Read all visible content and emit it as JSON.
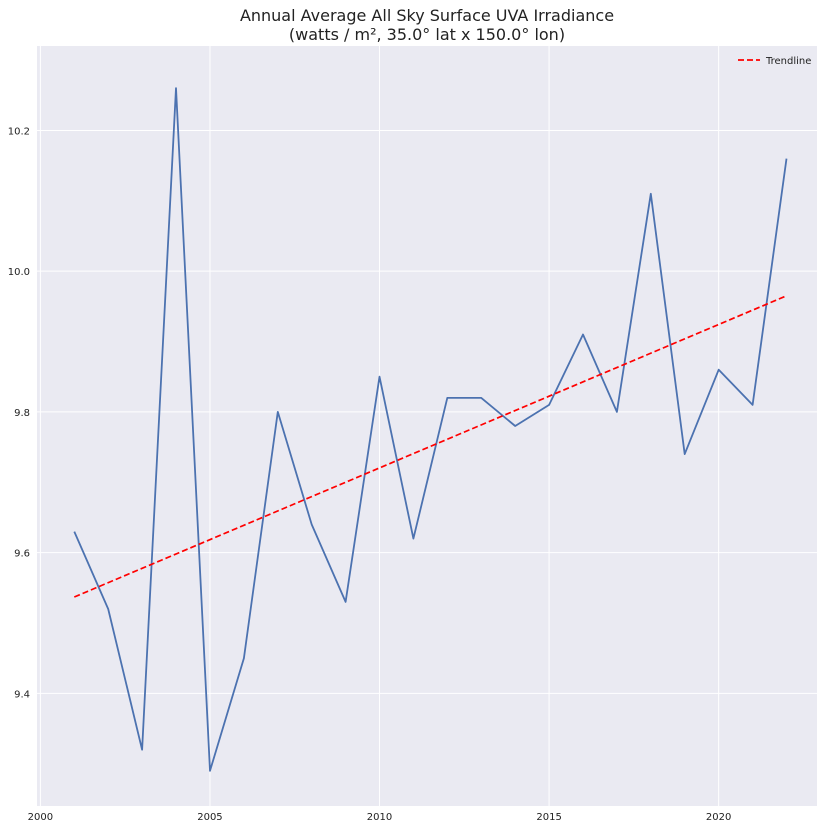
{
  "chart_data": {
    "type": "line",
    "title": "Annual Average All Sky Surface UVA Irradiance",
    "subtitle": "(watts / m², 35.0° lat x 150.0° lon)",
    "xlabel": "",
    "ylabel": "",
    "x_ticks": [
      "2000",
      "2005",
      "2010",
      "2015",
      "2020"
    ],
    "y_ticks": [
      "9.4",
      "9.6",
      "9.8",
      "10.0",
      "10.2"
    ],
    "xlim": [
      1999.9,
      2022.9
    ],
    "ylim": [
      9.24,
      10.32
    ],
    "grid": true,
    "legend_position": "top-right",
    "series": [
      {
        "color": "#4c72b0",
        "x": [
          2001,
          2002,
          2003,
          2004,
          2005,
          2006,
          2007,
          2008,
          2009,
          2010,
          2011,
          2012,
          2013,
          2014,
          2015,
          2016,
          2017,
          2018,
          2019,
          2020,
          2021,
          2022
        ],
        "y": [
          9.63,
          9.52,
          9.32,
          10.26,
          9.29,
          9.45,
          9.8,
          9.64,
          9.53,
          9.85,
          9.62,
          9.82,
          9.82,
          9.78,
          9.81,
          9.91,
          9.8,
          10.11,
          9.74,
          9.86,
          9.81,
          10.16
        ]
      },
      {
        "name": "Trendline",
        "color": "#ff0000",
        "dashed": true,
        "x": [
          2001,
          2022
        ],
        "y": [
          9.537,
          9.965
        ]
      }
    ]
  }
}
